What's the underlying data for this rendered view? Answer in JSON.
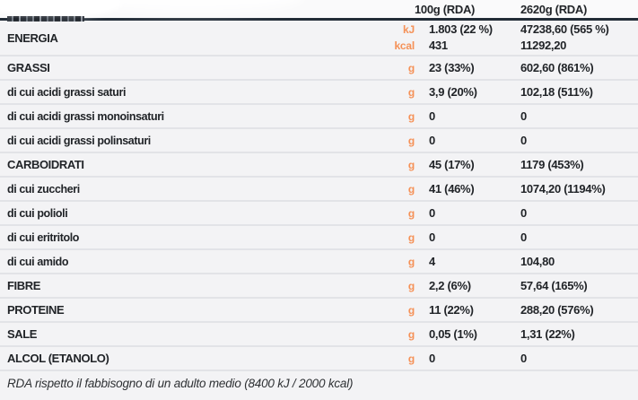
{
  "header": {
    "col_100g": "100g (RDA)",
    "col_2620g": "2620g (RDA)"
  },
  "rows": [
    {
      "label": "ENERGIA",
      "level": "main",
      "units": [
        "kJ",
        "kcal"
      ],
      "v100": [
        "1.803 (22 %)",
        "431"
      ],
      "v2620": [
        "47238,60 (565 %)",
        "11292,20"
      ]
    },
    {
      "label": "GRASSI",
      "level": "main",
      "unit": "g",
      "v100": "23 (33%)",
      "v2620": "602,60 (861%)"
    },
    {
      "label": "di cui acidi grassi saturi",
      "level": "sub",
      "unit": "g",
      "v100": "3,9 (20%)",
      "v2620": "102,18  (511%)"
    },
    {
      "label": "di cui acidi grassi monoinsaturi",
      "level": "sub",
      "unit": "g",
      "v100": "0",
      "v2620": "0"
    },
    {
      "label": "di cui acidi grassi polinsaturi",
      "level": "sub",
      "unit": "g",
      "v100": "0",
      "v2620": "0"
    },
    {
      "label": "CARBOIDRATI",
      "level": "main",
      "unit": "g",
      "v100": "45 (17%)",
      "v2620": "1179 (453%)"
    },
    {
      "label": "di cui zuccheri",
      "level": "sub",
      "unit": "g",
      "v100": "41 (46%)",
      "v2620": "1074,20 (1194%)"
    },
    {
      "label": "di cui polioli",
      "level": "sub",
      "unit": "g",
      "v100": "0",
      "v2620": "0"
    },
    {
      "label": "di cui eritritolo",
      "level": "sub",
      "unit": "g",
      "v100": "0",
      "v2620": "0"
    },
    {
      "label": "di cui amido",
      "level": "sub",
      "unit": "g",
      "v100": "4",
      "v2620": "104,80"
    },
    {
      "label": "FIBRE",
      "level": "main",
      "unit": "g",
      "v100": "2,2 (6%)",
      "v2620": "57,64 (165%)"
    },
    {
      "label": "PROTEINE",
      "level": "main",
      "unit": "g",
      "v100": "11 (22%)",
      "v2620": "288,20 (576%)"
    },
    {
      "label": "SALE",
      "level": "main",
      "unit": "g",
      "v100": "0,05 (1%)",
      "v2620": "1,31 (22%)"
    },
    {
      "label": "ALCOL (ETANOLO)",
      "level": "main",
      "unit": "g",
      "v100": "0",
      "v2620": "0"
    }
  ],
  "footer": {
    "note": "RDA rispetto il fabbisogno di un adulto medio (8400 kJ / 2000 kcal)"
  },
  "colors": {
    "unit_accent": "#f59157",
    "header_border": "#232d38",
    "row_separator": "#e2e3e7",
    "background": "#f3f3f5",
    "text": "#212428"
  }
}
